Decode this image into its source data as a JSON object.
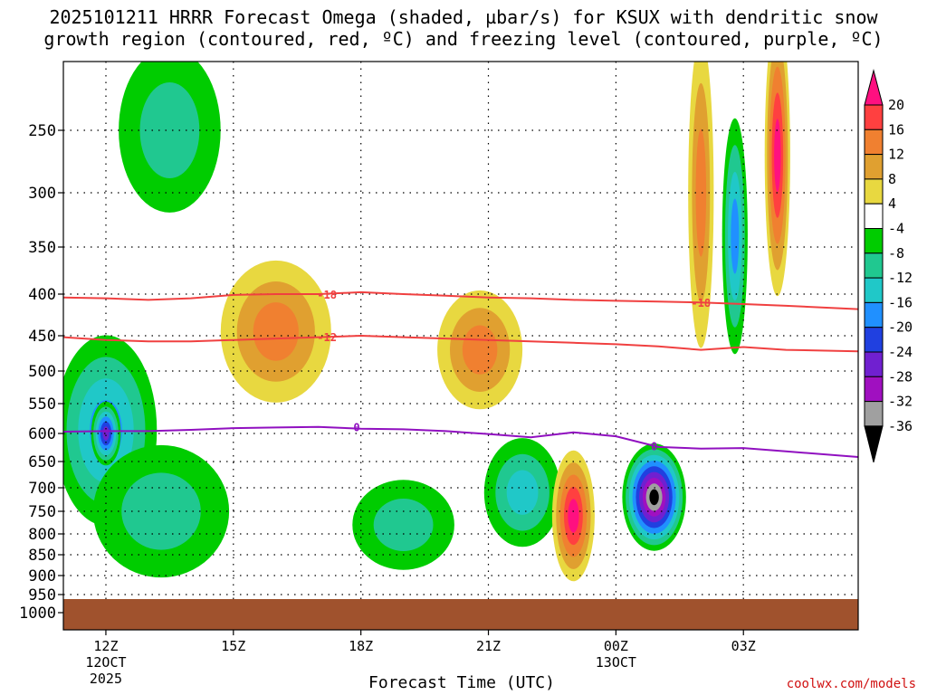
{
  "chart_data": {
    "type": "time-height cross section",
    "title_line1": "2025101211 HRRR Forecast Omega (shaded, µbar/s) for KSUX with dendritic snow",
    "title_line2": "growth region (contoured, red, ºC) and freezing level (contoured, purple, ºC)",
    "xlabel": "Forecast Time (UTC)",
    "credit": "coolwx.com/models",
    "x_ticks": [
      {
        "hour": 12,
        "label": "12Z",
        "sub1": "12OCT",
        "sub2": "2025"
      },
      {
        "hour": 15,
        "label": "15Z",
        "sub1": "",
        "sub2": ""
      },
      {
        "hour": 18,
        "label": "18Z",
        "sub1": "",
        "sub2": ""
      },
      {
        "hour": 21,
        "label": "21Z",
        "sub1": "",
        "sub2": ""
      },
      {
        "hour": 24,
        "label": "00Z",
        "sub1": "13OCT",
        "sub2": ""
      },
      {
        "hour": 27,
        "label": "03Z",
        "sub1": "",
        "sub2": ""
      }
    ],
    "x_range_hours": [
      11.0,
      29.7
    ],
    "y_levels": [
      250,
      300,
      350,
      400,
      450,
      500,
      550,
      600,
      650,
      700,
      750,
      800,
      850,
      900,
      950,
      1000
    ],
    "colorbar": {
      "labels": [
        "20",
        "16",
        "12",
        "8",
        "4",
        "-4",
        "-8",
        "-12",
        "-16",
        "-20",
        "-24",
        "-28",
        "-32",
        "-36"
      ],
      "colors": [
        "#ff1080",
        "#ff4040",
        "#f08030",
        "#e0a030",
        "#e8d840",
        "#ffffff",
        "#00cc00",
        "#20c890",
        "#20c8c8",
        "#2090ff",
        "#2040e0",
        "#7020d0",
        "#a010c0",
        "#a0a0a0",
        "#000000"
      ]
    },
    "contours": {
      "dgz_labels": [
        "-18",
        "-12"
      ],
      "freezing_label": "0",
      "minus18_pressure": [
        [
          11.0,
          404
        ],
        [
          12.0,
          405
        ],
        [
          13.0,
          407
        ],
        [
          14.0,
          405
        ],
        [
          15.0,
          401
        ],
        [
          16.0,
          400
        ],
        [
          17.0,
          400
        ],
        [
          18.0,
          398
        ],
        [
          19.0,
          400
        ],
        [
          20.0,
          402
        ],
        [
          21.0,
          404
        ],
        [
          22.0,
          405
        ],
        [
          23.0,
          407
        ],
        [
          24.0,
          408
        ],
        [
          25.0,
          409
        ],
        [
          26.0,
          410
        ],
        [
          27.0,
          412
        ],
        [
          28.0,
          414
        ],
        [
          29.7,
          418
        ]
      ],
      "minus12_pressure": [
        [
          11.0,
          452
        ],
        [
          12.0,
          456
        ],
        [
          13.0,
          458
        ],
        [
          14.0,
          458
        ],
        [
          15.0,
          456
        ],
        [
          16.0,
          454
        ],
        [
          17.0,
          452
        ],
        [
          18.0,
          450
        ],
        [
          19.0,
          452
        ],
        [
          20.0,
          454
        ],
        [
          21.0,
          456
        ],
        [
          22.0,
          458
        ],
        [
          23.0,
          460
        ],
        [
          24.0,
          462
        ],
        [
          25.0,
          465
        ],
        [
          26.0,
          470
        ],
        [
          27.0,
          466
        ],
        [
          28.0,
          470
        ],
        [
          29.7,
          472
        ]
      ],
      "zero_pressure": [
        [
          11.0,
          597
        ],
        [
          12.0,
          596
        ],
        [
          13.0,
          596
        ],
        [
          14.0,
          594
        ],
        [
          15.0,
          591
        ],
        [
          16.0,
          590
        ],
        [
          17.0,
          589
        ],
        [
          18.0,
          592
        ],
        [
          19.0,
          593
        ],
        [
          20.0,
          596
        ],
        [
          21.0,
          601
        ],
        [
          22.0,
          607
        ],
        [
          23.0,
          598
        ],
        [
          24.0,
          605
        ],
        [
          25.0,
          624
        ],
        [
          26.0,
          627
        ],
        [
          27.0,
          626
        ],
        [
          28.0,
          632
        ],
        [
          29.7,
          642
        ]
      ]
    },
    "features": [
      {
        "hour": 12.0,
        "p": 595,
        "dh": 1.2,
        "dp": 160,
        "value": -16
      },
      {
        "hour": 12.0,
        "p": 600,
        "dh": 0.35,
        "dp": 55,
        "value": -24
      },
      {
        "hour": 13.3,
        "p": 750,
        "dh": 1.6,
        "dp": 140,
        "value": -8
      },
      {
        "hour": 19.0,
        "p": 780,
        "dh": 1.2,
        "dp": 100,
        "value": -8
      },
      {
        "hour": 21.8,
        "p": 710,
        "dh": 0.9,
        "dp": 110,
        "value": -12
      },
      {
        "hour": 23.0,
        "p": 760,
        "dh": 0.5,
        "dp": 140,
        "value": 20
      },
      {
        "hour": 24.9,
        "p": 720,
        "dh": 0.75,
        "dp": 110,
        "value": -36
      },
      {
        "hour": 16.0,
        "p": 445,
        "dh": 1.3,
        "dp": 90,
        "value": 12
      },
      {
        "hour": 20.8,
        "p": 470,
        "dh": 1.0,
        "dp": 80,
        "value": 12
      },
      {
        "hour": 13.5,
        "p": 250,
        "dh": 1.2,
        "dp": 60,
        "value": -8
      },
      {
        "hour": 26.8,
        "p": 340,
        "dh": 0.3,
        "dp": 110,
        "value": -16
      },
      {
        "hour": 27.8,
        "p": 270,
        "dh": 0.3,
        "dp": 110,
        "value": 20
      },
      {
        "hour": 26.0,
        "p": 300,
        "dh": 0.3,
        "dp": 130,
        "value": 12
      }
    ]
  }
}
